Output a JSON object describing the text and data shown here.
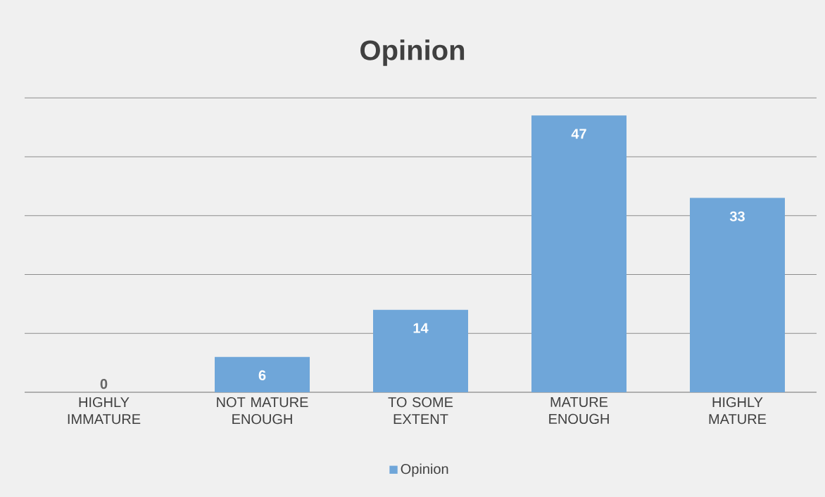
{
  "chart_data": {
    "type": "bar",
    "title": "Opinion",
    "categories": [
      "HIGHLY IMMATURE",
      "NOT MATURE ENOUGH",
      "TO SOME EXTENT",
      "MATURE ENOUGH",
      "HIGHLY MATURE"
    ],
    "series": [
      {
        "name": "Opinion",
        "color": "#6fa6d9",
        "values": [
          0,
          6,
          14,
          47,
          33
        ]
      }
    ],
    "grid": "y",
    "legend": "bottom",
    "data_labels": true
  }
}
